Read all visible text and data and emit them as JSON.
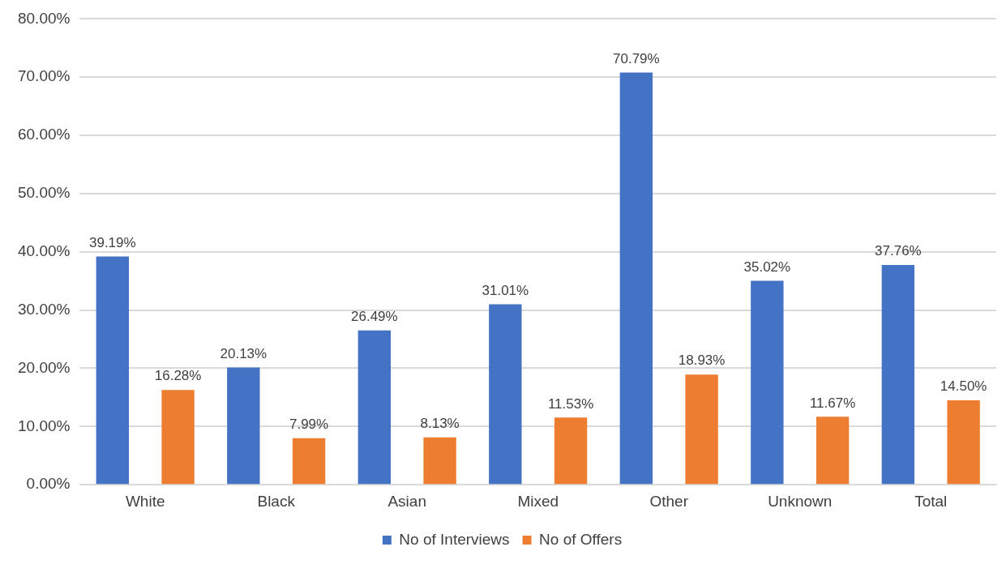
{
  "chart_data": {
    "type": "bar",
    "categories": [
      "White",
      "Black",
      "Asian",
      "Mixed",
      "Other",
      "Unknown",
      "Total"
    ],
    "series": [
      {
        "name": "No of Interviews",
        "color": "#4472c4",
        "values": [
          39.19,
          20.13,
          26.49,
          31.01,
          70.79,
          35.02,
          37.76
        ],
        "value_labels": [
          "39.19%",
          "20.13%",
          "26.49%",
          "31.01%",
          "70.79%",
          "35.02%",
          "37.76%"
        ]
      },
      {
        "name": "No of Offers",
        "color": "#ed7d31",
        "values": [
          16.28,
          7.99,
          8.13,
          11.53,
          18.93,
          11.67,
          14.5
        ],
        "value_labels": [
          "16.28%",
          "7.99%",
          "8.13%",
          "11.53%",
          "18.93%",
          "11.67%",
          "14.50%"
        ]
      }
    ],
    "ylim": [
      0,
      80
    ],
    "yticks": [
      {
        "value": 0,
        "label": "0.00%"
      },
      {
        "value": 10,
        "label": "10.00%"
      },
      {
        "value": 20,
        "label": "20.00%"
      },
      {
        "value": 30,
        "label": "30.00%"
      },
      {
        "value": 40,
        "label": "40.00%"
      },
      {
        "value": 50,
        "label": "50.00%"
      },
      {
        "value": 60,
        "label": "60.00%"
      },
      {
        "value": 70,
        "label": "70.00%"
      },
      {
        "value": 80,
        "label": "80.00%"
      }
    ],
    "grid": "y",
    "legend": "bottom"
  }
}
